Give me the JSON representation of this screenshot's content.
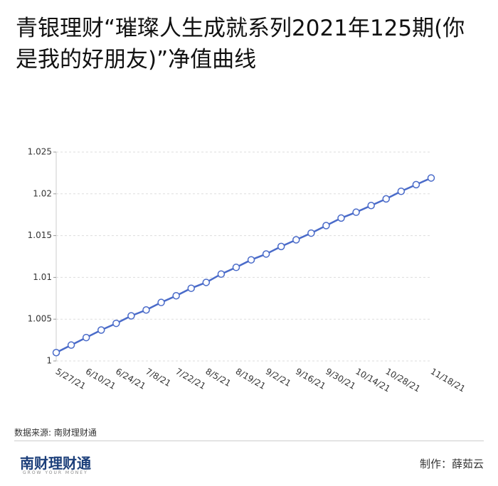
{
  "chart_data": {
    "type": "line",
    "title": "青银理财“璀璨人生成就系列2021年125期(你是我的好朋友)”净值曲线",
    "categories": [
      "5/27/21",
      null,
      "6/10/21",
      null,
      "6/24/21",
      null,
      "7/8/21",
      null,
      "7/22/21",
      null,
      "8/5/21",
      null,
      "8/19/21",
      null,
      "9/2/21",
      null,
      "9/16/21",
      null,
      "9/30/21",
      null,
      "10/14/21",
      null,
      "10/28/21",
      null,
      null,
      "11/18/21"
    ],
    "series": [
      {
        "color": "#4a6bc9",
        "values": [
          1.001,
          1.0019,
          1.0028,
          1.0037,
          1.0045,
          1.0054,
          1.0061,
          1.007,
          1.0078,
          1.0087,
          1.0094,
          1.0104,
          1.0112,
          1.0121,
          1.0128,
          1.0137,
          1.0145,
          1.0153,
          1.0162,
          1.0171,
          1.0178,
          1.0186,
          1.0194,
          1.0203,
          1.0211,
          1.0219
        ]
      }
    ],
    "ylim": [
      1,
      1.025
    ],
    "yticks": [
      1,
      1.005,
      1.01,
      1.015,
      1.02,
      1.025
    ],
    "grid": true,
    "source": "数据来源: 南财理财通"
  },
  "footer": {
    "brand": "南财理财通",
    "tagline": "GROW YOUR MONEY",
    "credit": "制作：薛茹云"
  }
}
